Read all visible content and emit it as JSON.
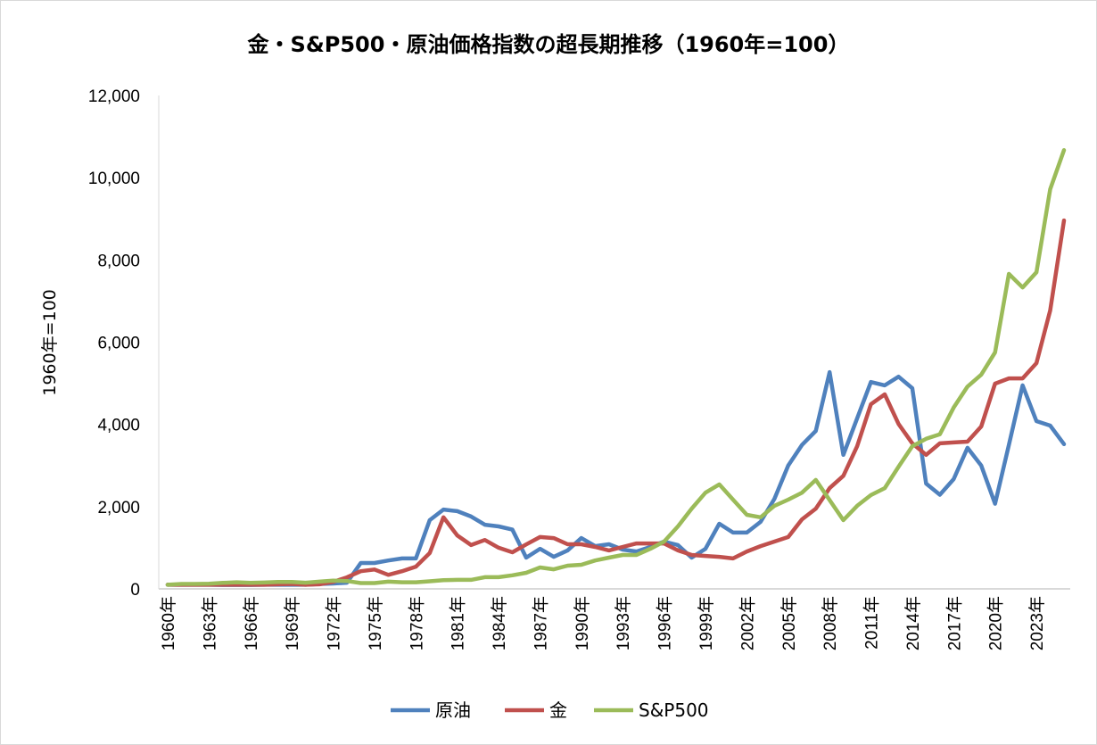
{
  "chart_data": {
    "type": "line",
    "title": "金・S&P500・原油価格指数の超長期推移（1960年=100）",
    "ylabel": "1960年=100",
    "xlabel": "",
    "ylim": [
      0,
      12000
    ],
    "yticks": [
      "0",
      "2,000",
      "4,000",
      "6,000",
      "8,000",
      "10,000",
      "12,000"
    ],
    "ytick_values": [
      0,
      2000,
      4000,
      6000,
      8000,
      10000,
      12000
    ],
    "x_start": 1960,
    "x_end": 2025,
    "x_tick_step": 3,
    "x_tick_suffix": "年",
    "grid": false,
    "legend_position": "bottom",
    "series": [
      {
        "name": "原油",
        "color": "#4f81bd",
        "values": [
          100,
          100,
          100,
          100,
          95,
          95,
          95,
          100,
          100,
          100,
          100,
          120,
          130,
          150,
          630,
          630,
          690,
          740,
          740,
          1670,
          1930,
          1890,
          1760,
          1560,
          1520,
          1440,
          760,
          975,
          780,
          935,
          1235,
          1040,
          1085,
          955,
          910,
          1020,
          1150,
          1065,
          760,
          975,
          1585,
          1370,
          1370,
          1630,
          2190,
          3000,
          3500,
          3840,
          5270,
          3260,
          4150,
          5030,
          4950,
          5160,
          4880,
          2560,
          2290,
          2670,
          3430,
          3000,
          2070,
          3500,
          4950,
          4080,
          3970,
          3520
        ]
      },
      {
        "name": "金",
        "color": "#c0504d",
        "values": [
          100,
          100,
          100,
          100,
          100,
          100,
          100,
          100,
          110,
          120,
          100,
          110,
          170,
          280,
          430,
          470,
          340,
          430,
          540,
          870,
          1740,
          1300,
          1065,
          1190,
          1000,
          890,
          1080,
          1260,
          1235,
          1085,
          1085,
          1020,
          935,
          1020,
          1105,
          1105,
          1105,
          935,
          825,
          800,
          780,
          740,
          910,
          1040,
          1150,
          1260,
          1690,
          1950,
          2450,
          2750,
          3470,
          4490,
          4730,
          4010,
          3540,
          3260,
          3540,
          3560,
          3580,
          3950,
          4990,
          5120,
          5120,
          5490,
          6770,
          8960
        ]
      },
      {
        "name": "S&P500",
        "color": "#9bbb59",
        "values": [
          100,
          120,
          120,
          125,
          145,
          160,
          145,
          155,
          170,
          170,
          150,
          175,
          200,
          190,
          140,
          140,
          175,
          160,
          160,
          185,
          210,
          220,
          220,
          285,
          285,
          330,
          390,
          520,
          475,
          565,
          585,
          690,
          760,
          825,
          825,
          975,
          1150,
          1520,
          1950,
          2340,
          2540,
          2170,
          1800,
          1740,
          2020,
          2170,
          2340,
          2650,
          2160,
          1670,
          2020,
          2280,
          2450,
          2970,
          3470,
          3650,
          3760,
          4410,
          4920,
          5210,
          5750,
          7660,
          7330,
          7700,
          9720,
          10670
        ]
      }
    ]
  }
}
